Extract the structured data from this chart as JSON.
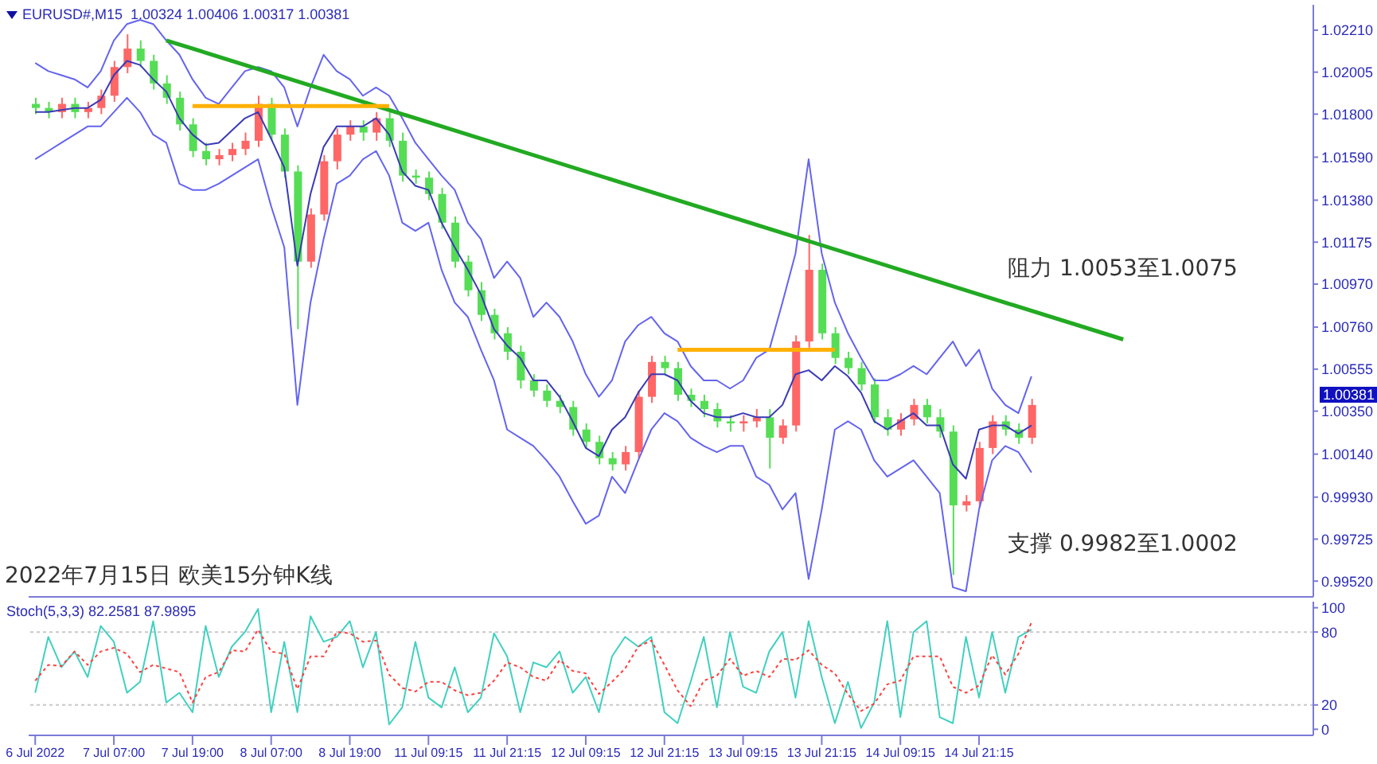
{
  "chart_data": [
    {
      "type": "candlestick",
      "title": "EURUSD#,M15  1.00324 1.00406 1.00317 1.00381",
      "annotations": [
        "阻力 1.0053至1.0075",
        "支撑 0.9982至1.0002",
        "2022年7月15日 欧美15分钟K线",
        "1.00381"
      ],
      "categories": [
        null,
        null,
        null,
        null,
        null,
        null,
        null,
        null,
        null,
        null,
        null,
        null,
        null,
        null,
        null,
        null,
        null,
        null,
        null,
        null,
        null,
        null,
        null,
        null,
        null,
        null,
        null,
        null,
        null,
        null,
        null,
        null,
        null,
        null,
        null,
        null,
        null,
        null,
        null,
        null,
        null,
        null,
        null,
        null,
        null,
        null,
        null,
        null,
        null,
        null,
        null,
        null,
        null,
        null,
        null,
        null,
        null,
        null,
        null,
        null,
        null,
        null,
        null,
        null,
        null,
        null,
        null,
        null,
        null,
        null,
        null,
        null,
        null,
        null,
        null,
        null,
        null,
        null,
        null,
        null,
        null,
        null,
        null,
        null,
        null,
        null,
        null,
        null,
        null,
        null,
        null,
        null,
        null,
        null,
        null,
        null,
        null,
        null
      ],
      "ohlc": [
        [
          1.0185,
          1.0188,
          1.018,
          1.0183
        ],
        [
          1.0183,
          1.0186,
          1.0178,
          1.0181
        ],
        [
          1.0181,
          1.0188,
          1.0178,
          1.0185
        ],
        [
          1.0185,
          1.0188,
          1.0178,
          1.0181
        ],
        [
          1.0181,
          1.0186,
          1.0178,
          1.0183
        ],
        [
          1.0183,
          1.0192,
          1.018,
          1.0189
        ],
        [
          1.0189,
          1.0206,
          1.0186,
          1.0203
        ],
        [
          1.0203,
          1.0219,
          1.02,
          1.0212
        ],
        [
          1.0212,
          1.0216,
          1.0203,
          1.0206
        ],
        [
          1.0206,
          1.0209,
          1.0192,
          1.0195
        ],
        [
          1.0195,
          1.0199,
          1.0185,
          1.0188
        ],
        [
          1.0188,
          1.0191,
          1.0172,
          1.0175
        ],
        [
          1.0175,
          1.0178,
          1.0159,
          1.0162
        ],
        [
          1.0162,
          1.0166,
          1.0155,
          1.0158
        ],
        [
          1.0158,
          1.0163,
          1.0155,
          1.016
        ],
        [
          1.016,
          1.0166,
          1.0157,
          1.0163
        ],
        [
          1.0163,
          1.0171,
          1.016,
          1.0167
        ],
        [
          1.0167,
          1.0189,
          1.0164,
          1.0185
        ],
        [
          1.0185,
          1.0188,
          1.0167,
          1.017
        ],
        [
          1.017,
          1.0173,
          1.0149,
          1.0152
        ],
        [
          1.0152,
          1.0155,
          1.0075,
          1.0108
        ],
        [
          1.0108,
          1.0134,
          1.0105,
          1.0131
        ],
        [
          1.0131,
          1.016,
          1.0128,
          1.0157
        ],
        [
          1.0157,
          1.0173,
          1.0153,
          1.017
        ],
        [
          1.017,
          1.0177,
          1.0167,
          1.0174
        ],
        [
          1.0174,
          1.0177,
          1.0167,
          1.0171
        ],
        [
          1.0171,
          1.0181,
          1.0167,
          1.0178
        ],
        [
          1.0178,
          1.0181,
          1.0164,
          1.0167
        ],
        [
          1.0167,
          1.0171,
          1.0147,
          1.015
        ],
        [
          1.015,
          1.0153,
          1.0146,
          1.0149
        ],
        [
          1.0149,
          1.0152,
          1.0138,
          1.0141
        ],
        [
          1.0141,
          1.0144,
          1.0124,
          1.0127
        ],
        [
          1.0127,
          1.013,
          1.0105,
          1.0108
        ],
        [
          1.0108,
          1.0111,
          1.0091,
          1.0094
        ],
        [
          1.0094,
          1.0098,
          1.0079,
          1.0082
        ],
        [
          1.0082,
          1.0085,
          1.007,
          1.0073
        ],
        [
          1.0073,
          1.0076,
          1.006,
          1.0064
        ],
        [
          1.0064,
          1.0067,
          1.0046,
          1.005
        ],
        [
          1.005,
          1.0053,
          1.0042,
          1.0045
        ],
        [
          1.0045,
          1.0048,
          1.0037,
          1.004
        ],
        [
          1.004,
          1.0043,
          1.0034,
          1.0037
        ],
        [
          1.0037,
          1.004,
          1.0023,
          1.0026
        ],
        [
          1.0026,
          1.0029,
          1.0017,
          1.002
        ],
        [
          1.002,
          1.0023,
          1.0009,
          1.0012
        ],
        [
          1.0012,
          1.0015,
          1.0006,
          1.0009
        ],
        [
          1.0009,
          1.0018,
          1.0006,
          1.0015
        ],
        [
          1.0015,
          1.0045,
          1.0012,
          1.0042
        ],
        [
          1.0042,
          1.0062,
          1.0039,
          1.0059
        ],
        [
          1.0059,
          1.0062,
          1.0053,
          1.0056
        ],
        [
          1.0056,
          1.0059,
          1.004,
          1.0043
        ],
        [
          1.0043,
          1.0046,
          1.0037,
          1.004
        ],
        [
          1.004,
          1.0043,
          1.0032,
          1.0036
        ],
        [
          1.0036,
          1.0039,
          1.0027,
          1.003
        ],
        [
          1.003,
          1.0033,
          1.0025,
          1.0029
        ],
        [
          1.0029,
          1.0033,
          1.0025,
          1.003
        ],
        [
          1.003,
          1.0036,
          1.0027,
          1.0032
        ],
        [
          1.0032,
          1.0036,
          1.0007,
          1.0022
        ],
        [
          1.0022,
          1.0031,
          1.0019,
          1.0028
        ],
        [
          1.0028,
          1.0072,
          1.0025,
          1.0069
        ],
        [
          1.0069,
          1.0121,
          1.0066,
          1.0104
        ],
        [
          1.0104,
          1.0107,
          1.007,
          1.0073
        ],
        [
          1.0073,
          1.0076,
          1.0058,
          1.0061
        ],
        [
          1.0061,
          1.0064,
          1.0053,
          1.0056
        ],
        [
          1.0056,
          1.0059,
          1.0045,
          1.0048
        ],
        [
          1.0048,
          1.0051,
          1.0029,
          1.0032
        ],
        [
          1.0032,
          1.0036,
          1.0023,
          1.0026
        ],
        [
          1.0026,
          1.0034,
          1.0023,
          1.0031
        ],
        [
          1.0031,
          1.0041,
          1.0028,
          1.0038
        ],
        [
          1.0038,
          1.0041,
          1.0029,
          1.0032
        ],
        [
          1.0032,
          1.0036,
          1.0022,
          1.0025
        ],
        [
          1.0025,
          1.0028,
          0.9955,
          0.9989
        ],
        [
          0.9989,
          0.9994,
          0.9986,
          0.9991
        ],
        [
          0.9991,
          1.002,
          0.9988,
          1.0017
        ],
        [
          1.0017,
          1.0033,
          1.0014,
          1.003
        ],
        [
          1.003,
          1.0033,
          1.0023,
          1.0026
        ],
        [
          1.0026,
          1.0029,
          1.0019,
          1.0022
        ],
        [
          1.0022,
          1.0041,
          1.0019,
          1.0038
        ],
        null,
        null,
        null,
        null,
        null,
        null,
        null,
        null,
        null,
        null,
        null,
        null,
        null,
        null,
        null,
        null,
        null,
        null,
        null,
        null,
        null
      ],
      "colors": [
        "#55dd55",
        "#55dd55",
        "#ff6666",
        "#55dd55",
        "#ff6666",
        "#ff6666",
        "#ff6666",
        "#ff6666",
        "#55dd55",
        "#55dd55",
        "#55dd55",
        "#55dd55",
        "#55dd55",
        "#55dd55",
        "#ff6666",
        "#ff6666",
        "#ff6666",
        "#ff6666",
        "#55dd55",
        "#55dd55",
        "#55dd55",
        "#ff6666",
        "#ff6666",
        "#ff6666",
        "#ff6666",
        "#55dd55",
        "#ff6666",
        "#55dd55",
        "#55dd55",
        "#55dd55",
        "#55dd55",
        "#55dd55",
        "#55dd55",
        "#55dd55",
        "#55dd55",
        "#55dd55",
        "#55dd55",
        "#55dd55",
        "#55dd55",
        "#55dd55",
        "#55dd55",
        "#55dd55",
        "#55dd55",
        "#55dd55",
        "#55dd55",
        "#ff6666",
        "#ff6666",
        "#ff6666",
        "#55dd55",
        "#55dd55",
        "#55dd55",
        "#55dd55",
        "#55dd55",
        "#55dd55",
        "#ff6666",
        "#ff6666",
        "#55dd55",
        "#ff6666",
        "#ff6666",
        "#ff6666",
        "#55dd55",
        "#55dd55",
        "#55dd55",
        "#55dd55",
        "#55dd55",
        "#55dd55",
        "#ff6666",
        "#ff6666",
        "#55dd55",
        "#55dd55",
        "#55dd55",
        "#ff6666",
        "#ff6666",
        "#ff6666",
        "#55dd55",
        "#55dd55",
        "#ff6666",
        null,
        null,
        null,
        null,
        null,
        null,
        null,
        null,
        null,
        null,
        null,
        null,
        null,
        null,
        null,
        null,
        null,
        null,
        null,
        null,
        null
      ],
      "series": [
        {
          "type": "line",
          "color": "#6464f0",
          "values": [
            1.0205,
            1.0201,
            1.0199,
            1.0197,
            1.0193,
            1.0201,
            1.0216,
            1.0224,
            1.0226,
            1.0224,
            1.0216,
            1.0209,
            1.0197,
            1.0188,
            1.0185,
            1.0193,
            1.0201,
            1.0203,
            1.0201,
            1.0193,
            1.0174,
            1.0193,
            1.0209,
            1.0201,
            1.0197,
            1.0189,
            1.0193,
            1.0189,
            1.0178,
            1.0166,
            1.0158,
            1.015,
            1.0143,
            1.0127,
            1.0119,
            1.01,
            1.0108,
            1.01,
            1.0081,
            1.0088,
            1.0081,
            1.0069,
            1.0053,
            1.0042,
            1.005,
            1.0069,
            1.0077,
            1.0081,
            1.0073,
            1.0069,
            1.0057,
            1.005,
            1.005,
            1.0046,
            1.005,
            1.0061,
            1.0065,
            1.0088,
            1.0112,
            1.0158,
            1.0112,
            1.0088,
            1.0073,
            1.0061,
            1.005,
            1.005,
            1.0053,
            1.0057,
            1.0053,
            1.0061,
            1.0069,
            1.0057,
            1.0065,
            1.0046,
            1.0038,
            1.0034,
            1.0052,
            null,
            null,
            null,
            null,
            null,
            null,
            null,
            null,
            null,
            null,
            null,
            null,
            null,
            null,
            null,
            null,
            null,
            null,
            null,
            null,
            null
          ]
        },
        {
          "type": "line",
          "color": "#3a3ab8",
          "values": [
            1.0181,
            1.0181,
            1.0182,
            1.0183,
            1.0183,
            1.0187,
            1.0199,
            1.0206,
            1.0204,
            1.0197,
            1.0191,
            1.0178,
            1.017,
            1.0165,
            1.0166,
            1.0172,
            1.0178,
            1.0181,
            1.0168,
            1.0154,
            1.0106,
            1.0141,
            1.0164,
            1.0174,
            1.0174,
            1.0174,
            1.0178,
            1.017,
            1.0152,
            1.0145,
            1.0143,
            1.0127,
            1.0115,
            1.0104,
            1.0092,
            1.0075,
            1.0067,
            1.0061,
            1.005,
            1.005,
            1.0042,
            1.003,
            1.0017,
            1.0013,
            1.0026,
            1.0032,
            1.0044,
            1.0053,
            1.0053,
            1.005,
            1.004,
            1.0034,
            1.0032,
            1.0032,
            1.0034,
            1.0032,
            1.0032,
            1.0038,
            1.0053,
            1.0055,
            1.005,
            1.0057,
            1.0052,
            1.0044,
            1.003,
            1.0026,
            1.003,
            1.0034,
            1.0028,
            1.0028,
            1.0009,
            1.0002,
            1.0026,
            1.0028,
            1.0028,
            1.0024,
            1.0028,
            null,
            null,
            null,
            null,
            null,
            null,
            null,
            null,
            null,
            null,
            null,
            null,
            null,
            null,
            null,
            null,
            null,
            null,
            null,
            null,
            null
          ]
        },
        {
          "type": "line",
          "color": "#6464f0",
          "values": [
            1.0158,
            1.0162,
            1.0166,
            1.017,
            1.0174,
            1.0174,
            1.0181,
            1.0188,
            1.0181,
            1.017,
            1.0166,
            1.0146,
            1.0143,
            1.0143,
            1.0146,
            1.015,
            1.0154,
            1.0158,
            1.0135,
            1.0115,
            1.0038,
            1.0088,
            1.0119,
            1.0146,
            1.015,
            1.0158,
            1.0162,
            1.015,
            1.0127,
            1.0123,
            1.0127,
            1.0104,
            1.0088,
            1.0081,
            1.0065,
            1.005,
            1.0026,
            1.0022,
            1.0018,
            1.0011,
            1.0003,
            0.9991,
            0.998,
            0.9984,
            1.0003,
            0.9995,
            1.0011,
            1.0026,
            1.0034,
            1.003,
            1.0022,
            1.0018,
            1.0015,
            1.0018,
            1.0018,
            1.0003,
            0.9999,
            0.9987,
            0.9995,
            0.9953,
            0.9987,
            1.0026,
            1.003,
            1.0026,
            1.0011,
            1.0003,
            1.0007,
            1.0011,
            1.0003,
            0.9995,
            0.9949,
            0.9947,
            0.9987,
            1.0011,
            1.0018,
            1.0015,
            1.0005,
            null,
            null,
            null,
            null,
            null,
            null,
            null,
            null,
            null,
            null,
            null,
            null,
            null,
            null,
            null,
            null,
            null,
            null,
            null,
            null,
            null
          ]
        },
        {
          "type": "line",
          "color": "#22aa22",
          "values": [
            null,
            null,
            null,
            null,
            null,
            null,
            null,
            null,
            null,
            null,
            1.0216,
            null,
            null,
            null,
            null,
            null,
            null,
            null,
            null,
            null,
            null,
            null,
            null,
            null,
            null,
            null,
            null,
            null,
            null,
            null,
            null,
            null,
            null,
            null,
            null,
            null,
            null,
            null,
            null,
            null,
            null,
            null,
            null,
            null,
            null,
            null,
            null,
            null,
            null,
            null,
            null,
            null,
            null,
            null,
            null,
            null,
            null,
            null,
            null,
            null,
            null,
            null,
            null,
            null,
            null,
            null,
            null,
            null,
            null,
            null,
            null,
            null,
            null,
            null,
            null,
            null,
            null,
            null,
            null,
            null,
            null,
            null,
            null,
            1.007,
            null,
            null,
            null,
            null,
            null,
            null,
            null,
            null,
            null,
            null,
            null,
            null,
            null,
            null
          ]
        },
        {
          "type": "line",
          "color": "#ffb000",
          "values": [
            null,
            null,
            null,
            null,
            null,
            null,
            null,
            null,
            null,
            null,
            null,
            null,
            1.0184,
            null,
            null,
            null,
            null,
            null,
            null,
            null,
            null,
            null,
            null,
            null,
            null,
            null,
            null,
            1.0184,
            null,
            null,
            null,
            null,
            null,
            null,
            null,
            null,
            null,
            null,
            null,
            null,
            null,
            null,
            null,
            null,
            null,
            null,
            null,
            null,
            null,
            null,
            null,
            null,
            null,
            null,
            null,
            null,
            null,
            null,
            null,
            null,
            null,
            null,
            null,
            null,
            null,
            null,
            null,
            null,
            null,
            null,
            null,
            null,
            null,
            null,
            null,
            null,
            null,
            null,
            null,
            null,
            null,
            null,
            null,
            null,
            null,
            null,
            null,
            null,
            null,
            null,
            null,
            null,
            null,
            null,
            null,
            null,
            null,
            null
          ]
        },
        {
          "type": "line",
          "color": "#ffb000",
          "values": [
            null,
            null,
            null,
            null,
            null,
            null,
            null,
            null,
            null,
            null,
            null,
            null,
            null,
            null,
            null,
            null,
            null,
            null,
            null,
            null,
            null,
            null,
            null,
            null,
            null,
            null,
            null,
            null,
            null,
            null,
            null,
            null,
            null,
            null,
            null,
            null,
            null,
            null,
            null,
            null,
            null,
            null,
            null,
            null,
            null,
            null,
            null,
            null,
            null,
            1.0065,
            null,
            null,
            null,
            null,
            null,
            null,
            null,
            null,
            null,
            null,
            null,
            1.0065,
            null,
            null,
            null,
            null,
            null,
            null,
            null,
            null,
            null,
            null,
            null,
            null,
            null,
            null,
            null,
            null,
            null,
            null,
            null,
            null,
            null,
            null,
            null,
            null,
            null,
            null,
            null,
            null,
            null,
            null,
            null,
            null,
            null,
            null,
            null,
            null
          ]
        }
      ],
      "ylim": [
        0.99443,
        1.02334
      ],
      "yticks": [
        {
          "value": 1.0221,
          "label": "1.02210"
        },
        {
          "value": 1.02005,
          "label": "1.02005"
        },
        {
          "value": 1.018,
          "label": "1.01800"
        },
        {
          "value": 1.0159,
          "label": "1.01590"
        },
        {
          "value": 1.0138,
          "label": "1.01380"
        },
        {
          "value": 1.01175,
          "label": "1.01175"
        },
        {
          "value": 1.0097,
          "label": "1.00970"
        },
        {
          "value": 1.0076,
          "label": "1.00760"
        },
        {
          "value": 1.00555,
          "label": "1.00555"
        },
        {
          "value": 1.0035,
          "label": "1.00350"
        },
        {
          "value": 1.0014,
          "label": "1.00140"
        },
        {
          "value": 0.9993,
          "label": "0.99930"
        },
        {
          "value": 0.99725,
          "label": "0.99725"
        },
        {
          "value": 0.9952,
          "label": "0.99520"
        }
      ],
      "marker": "none"
    },
    {
      "type": "line",
      "title": "Stoch(5,3,3) 82.2581 87.9895",
      "categories": [
        "6 Jul 2022",
        null,
        null,
        null,
        null,
        null,
        "7 Jul 07:00",
        null,
        null,
        null,
        null,
        null,
        "7 Jul 19:00",
        null,
        null,
        null,
        null,
        null,
        "8 Jul 07:00",
        null,
        null,
        null,
        null,
        null,
        "8 Jul 19:00",
        null,
        null,
        null,
        null,
        null,
        "11 Jul 09:15",
        null,
        null,
        null,
        null,
        null,
        "11 Jul 21:15",
        null,
        null,
        null,
        null,
        null,
        "12 Jul 09:15",
        null,
        null,
        null,
        null,
        null,
        "12 Jul 21:15",
        null,
        null,
        null,
        null,
        null,
        "13 Jul 09:15",
        null,
        null,
        null,
        null,
        null,
        "13 Jul 21:15",
        null,
        null,
        null,
        null,
        null,
        "14 Jul 09:15",
        null,
        null,
        null,
        null,
        null,
        "14 Jul 21:15",
        null,
        null,
        null,
        null,
        null,
        null,
        null,
        null,
        null,
        null,
        null,
        null,
        null,
        null,
        null,
        null,
        null,
        null,
        null,
        null,
        null,
        null,
        null,
        null,
        null
      ],
      "series": [
        {
          "color": "#40d0c0",
          "values": [
            30,
            76,
            51,
            64,
            43,
            85,
            72,
            30,
            39,
            89,
            22,
            30,
            14,
            85,
            43,
            68,
            80,
            99,
            14,
            72,
            14,
            93,
            72,
            76,
            89,
            51,
            80,
            4,
            18,
            72,
            26,
            18,
            51,
            14,
            26,
            79,
            60,
            14,
            55,
            51,
            64,
            30,
            43,
            14,
            60,
            76,
            68,
            76,
            14,
            5,
            39,
            76,
            18,
            80,
            35,
            30,
            64,
            80,
            26,
            89,
            43,
            5,
            39,
            1,
            22,
            89,
            10,
            80,
            89,
            10,
            5,
            76,
            26,
            80,
            30,
            76,
            82,
            null,
            null,
            null,
            null,
            null,
            null,
            null,
            null,
            null,
            null,
            null,
            null,
            null,
            null,
            null,
            null,
            null,
            null,
            null,
            null,
            null
          ]
        },
        {
          "color": "#ff4040",
          "line_style": "dotted",
          "values": [
            40,
            53,
            52,
            64,
            53,
            64,
            67,
            62,
            47,
            53,
            50,
            47,
            22,
            43,
            47,
            65,
            64,
            82,
            64,
            62,
            33,
            60,
            60,
            80,
            79,
            72,
            73,
            45,
            34,
            31,
            39,
            39,
            32,
            28,
            30,
            40,
            55,
            51,
            43,
            40,
            57,
            48,
            46,
            29,
            39,
            50,
            68,
            73,
            53,
            32,
            19,
            40,
            44,
            58,
            44,
            48,
            43,
            58,
            57,
            65,
            53,
            46,
            29,
            15,
            21,
            37,
            40,
            60,
            60,
            60,
            35,
            30,
            36,
            61,
            45,
            62,
            88,
            null,
            null,
            null,
            null,
            null,
            null,
            null,
            null,
            null,
            null,
            null,
            null,
            null,
            null,
            null,
            null,
            null,
            null,
            null,
            null,
            null
          ]
        }
      ],
      "ref_lines": [
        {
          "axis": "y",
          "value": 20,
          "color": "#c8c8c8",
          "line_style": "dotted"
        },
        {
          "axis": "y",
          "value": 80,
          "color": "#c8c8c8",
          "line_style": "dotted"
        }
      ],
      "ylim": [
        -5,
        105
      ],
      "yticks": [
        0,
        20,
        80,
        100
      ],
      "marker": "none",
      "line_style": "solid"
    }
  ]
}
